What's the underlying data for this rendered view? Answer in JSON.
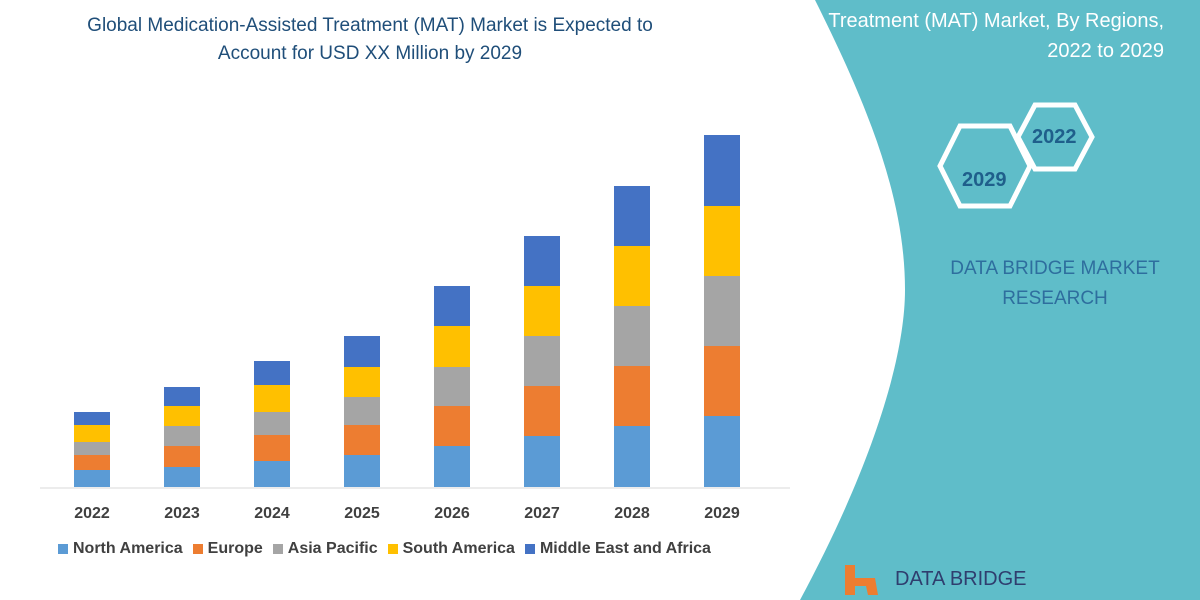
{
  "title": "Global Medication-Assisted Treatment (MAT) Market is Expected to Account for USD XX Million by 2029",
  "side_panel": {
    "title": "Treatment (MAT) Market, By Regions, 2022 to 2029",
    "hex_labels": [
      "2022",
      "2029"
    ],
    "brand": "DATA BRIDGE MARKET RESEARCH",
    "logo_text": "DATA BRIDGE",
    "color": "#5fbdc9"
  },
  "chart_data": {
    "type": "bar",
    "stacked": true,
    "categories": [
      "2022",
      "2023",
      "2024",
      "2025",
      "2026",
      "2027",
      "2028",
      "2029"
    ],
    "series": [
      {
        "name": "North America",
        "color": "#5b9bd5",
        "values": [
          17,
          20,
          26,
          32,
          41,
          51,
          61,
          71
        ]
      },
      {
        "name": "Europe",
        "color": "#ed7d31",
        "values": [
          15,
          21,
          26,
          30,
          40,
          50,
          60,
          70
        ]
      },
      {
        "name": "Asia Pacific",
        "color": "#a5a5a5",
        "values": [
          13,
          20,
          23,
          28,
          39,
          50,
          60,
          70
        ]
      },
      {
        "name": "South America",
        "color": "#ffc000",
        "values": [
          17,
          20,
          27,
          30,
          41,
          50,
          60,
          70
        ]
      },
      {
        "name": "Middle East and Africa",
        "color": "#4472c4",
        "values": [
          13,
          19,
          24,
          31,
          40,
          50,
          60,
          71
        ]
      }
    ],
    "legend": "bottom",
    "grid": false,
    "y_axis_shown": false
  }
}
